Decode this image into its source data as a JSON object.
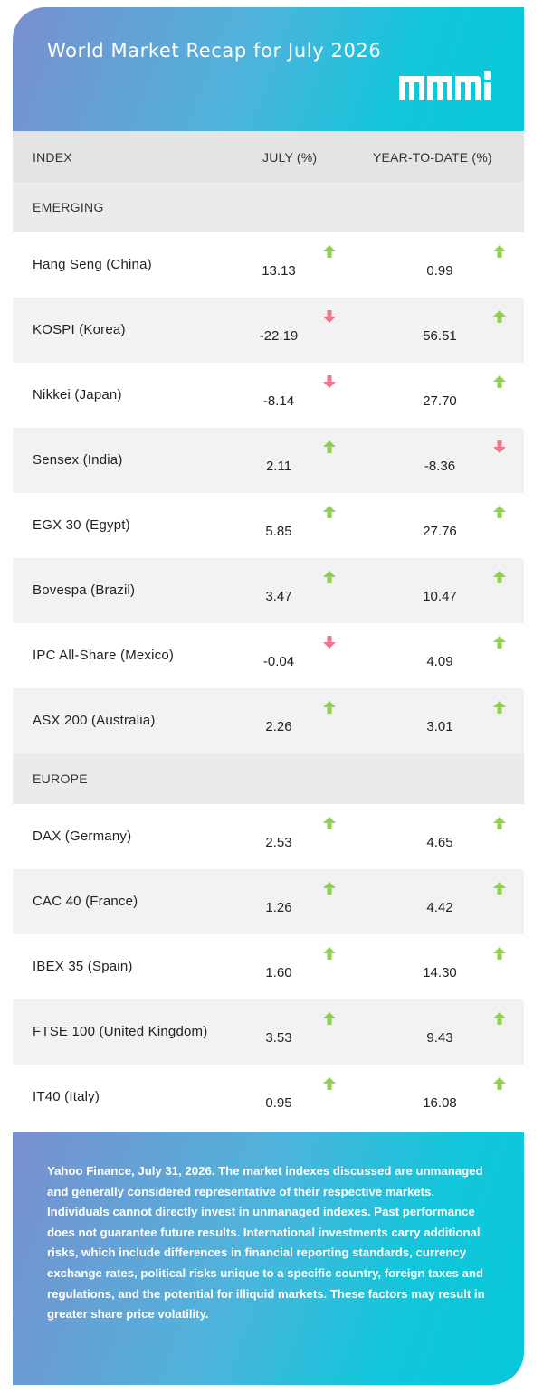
{
  "header": {
    "title": "World Market Recap for July 2026"
  },
  "columns": {
    "index": "INDEX",
    "july": "JULY (%)",
    "ytd": "YEAR-TO-DATE (%)"
  },
  "colors": {
    "up": "#8fd14f",
    "down": "#f0768b"
  },
  "sections": [
    {
      "label": "EMERGING",
      "rows": [
        {
          "name": "Hang Seng (China)",
          "july": "13.13",
          "july_dir": "up",
          "ytd": "0.99",
          "ytd_dir": "up"
        },
        {
          "name": "KOSPI (Korea)",
          "july": "-22.19",
          "july_dir": "down",
          "ytd": "56.51",
          "ytd_dir": "up"
        },
        {
          "name": "Nikkei (Japan)",
          "july": "-8.14",
          "july_dir": "down",
          "ytd": "27.70",
          "ytd_dir": "up"
        },
        {
          "name": "Sensex (India)",
          "july": "2.11",
          "july_dir": "up",
          "ytd": "-8.36",
          "ytd_dir": "down"
        },
        {
          "name": "EGX 30 (Egypt)",
          "july": "5.85",
          "july_dir": "up",
          "ytd": "27.76",
          "ytd_dir": "up"
        },
        {
          "name": "Bovespa (Brazil)",
          "july": "3.47",
          "july_dir": "up",
          "ytd": "10.47",
          "ytd_dir": "up"
        },
        {
          "name": "IPC All-Share (Mexico)",
          "july": "-0.04",
          "july_dir": "down",
          "ytd": "4.09",
          "ytd_dir": "up"
        },
        {
          "name": "ASX 200 (Australia)",
          "july": "2.26",
          "july_dir": "up",
          "ytd": "3.01",
          "ytd_dir": "up"
        }
      ]
    },
    {
      "label": "EUROPE",
      "rows": [
        {
          "name": "DAX (Germany)",
          "july": "2.53",
          "july_dir": "up",
          "ytd": "4.65",
          "ytd_dir": "up"
        },
        {
          "name": "CAC 40 (France)",
          "july": "1.26",
          "july_dir": "up",
          "ytd": "4.42",
          "ytd_dir": "up"
        },
        {
          "name": "IBEX 35 (Spain)",
          "july": "1.60",
          "july_dir": "up",
          "ytd": "14.30",
          "ytd_dir": "up"
        },
        {
          "name": "FTSE 100 (United Kingdom)",
          "july": "3.53",
          "july_dir": "up",
          "ytd": "9.43",
          "ytd_dir": "up"
        },
        {
          "name": "IT40 (Italy)",
          "july": "0.95",
          "july_dir": "up",
          "ytd": "16.08",
          "ytd_dir": "up"
        }
      ]
    }
  ],
  "footer": {
    "text": "Yahoo Finance, July 31, 2026. The market indexes discussed are unmanaged and generally considered representative of their respective markets. Individuals cannot directly invest in unmanaged indexes. Past performance does not guarantee future results. International investments carry additional risks, which include differences in financial reporting standards, currency exchange rates, political risks unique to a specific country, foreign taxes and regulations, and the potential for illiquid markets. These factors may result in greater share price volatility."
  }
}
